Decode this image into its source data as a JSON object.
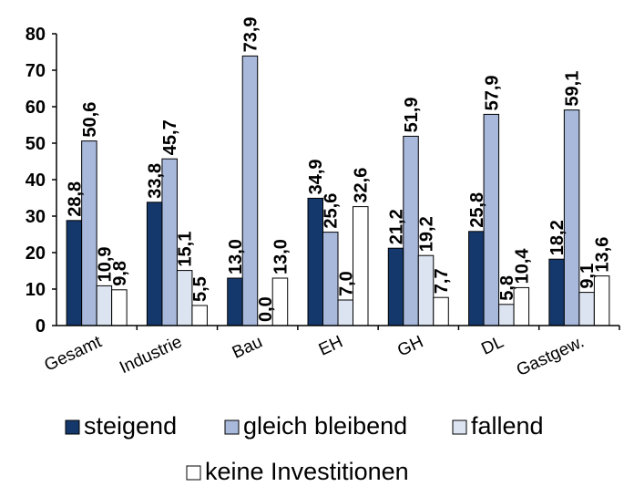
{
  "chart_data": {
    "type": "bar",
    "categories": [
      "Gesamt",
      "Industrie",
      "Bau",
      "EH",
      "GH",
      "DL",
      "Gastgew."
    ],
    "series": [
      {
        "name": "steigend",
        "color": "#14386b",
        "values": [
          28.8,
          33.8,
          13.0,
          34.9,
          21.2,
          25.8,
          18.2
        ]
      },
      {
        "name": "gleich bleibend",
        "color": "#a9b9dc",
        "values": [
          50.6,
          45.7,
          73.9,
          25.6,
          51.9,
          57.9,
          59.1
        ]
      },
      {
        "name": "fallend",
        "color": "#dce4f2",
        "values": [
          10.9,
          15.1,
          0.0,
          7.0,
          19.2,
          5.8,
          9.1
        ]
      },
      {
        "name": "keine Investitionen",
        "color": "#ffffff",
        "values": [
          9.8,
          5.5,
          13.0,
          32.6,
          7.7,
          10.4,
          13.6
        ]
      }
    ],
    "data_labels": [
      [
        "28,8",
        "33,8",
        "13,0",
        "34,9",
        "21,2",
        "25,8",
        "18,2"
      ],
      [
        "50,6",
        "45,7",
        "73,9",
        "25,6",
        "51,9",
        "57,9",
        "59,1"
      ],
      [
        "10,9",
        "15,1",
        "0,0",
        "7,0",
        "19,2",
        "5,8",
        "9,1"
      ],
      [
        "9,8",
        "5,5",
        "13,0",
        "32,6",
        "7,7",
        "10,4",
        "13,6"
      ]
    ],
    "ylim": [
      0,
      80
    ],
    "yticks": [
      0,
      10,
      20,
      30,
      40,
      50,
      60,
      70,
      80
    ],
    "grid": false,
    "legend_position": "bottom",
    "title": "",
    "xlabel": "",
    "ylabel": ""
  }
}
